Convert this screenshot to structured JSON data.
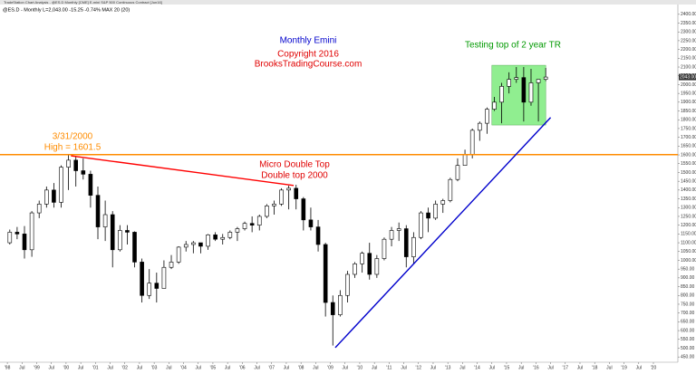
{
  "chart_data": {
    "type": "candlestick",
    "window_title": "TradeStation Chart Analysis - @ES.D Monthly [CME] E-mini S&P 500 Continuous Contract [Jun16]",
    "status_line": "@ES.D - Monthly  L=2,043.00  -15.25  -0.74%  MAX 20 (20)",
    "last_price_label": "2043.00",
    "annotations": {
      "title": "Monthly Emini",
      "copyright": "Copyright 2016",
      "site": "BrooksTradingCourse.com",
      "range_note": "Testing top of 2 year TR",
      "high_date": "3/31/2000",
      "high_note": "High = 1601.5",
      "double_top_1": "Micro Double Top",
      "double_top_2": "Double top 2000"
    },
    "x": [
      "1998-02",
      "1998-05",
      "1998-08",
      "1998-11",
      "1999-02",
      "1999-05",
      "1999-08",
      "1999-11",
      "2000-02",
      "2000-05",
      "2000-08",
      "2000-11",
      "2001-02",
      "2001-05",
      "2001-08",
      "2001-11",
      "2002-02",
      "2002-05",
      "2002-08",
      "2002-11",
      "2003-02",
      "2003-05",
      "2003-08",
      "2003-11",
      "2004-02",
      "2004-05",
      "2004-08",
      "2004-11",
      "2005-02",
      "2005-05",
      "2005-08",
      "2005-11",
      "2006-02",
      "2006-05",
      "2006-08",
      "2006-11",
      "2007-02",
      "2007-05",
      "2007-08",
      "2007-11",
      "2008-02",
      "2008-05",
      "2008-08",
      "2008-11",
      "2009-02",
      "2009-05",
      "2009-08",
      "2009-11",
      "2010-02",
      "2010-05",
      "2010-08",
      "2010-11",
      "2011-02",
      "2011-05",
      "2011-08",
      "2011-11",
      "2012-02",
      "2012-05",
      "2012-08",
      "2012-11",
      "2013-02",
      "2013-05",
      "2013-08",
      "2013-11",
      "2014-02",
      "2014-05",
      "2014-08",
      "2014-11",
      "2015-02",
      "2015-05",
      "2015-08",
      "2015-11",
      "2016-02",
      "2016-05"
    ],
    "open": [
      1100,
      1160,
      1150,
      1060,
      1270,
      1320,
      1400,
      1330,
      1530,
      1570,
      1510,
      1490,
      1370,
      1190,
      1260,
      1060,
      1170,
      1160,
      990,
      800,
      870,
      840,
      960,
      990,
      1075,
      1090,
      1100,
      1080,
      1145,
      1120,
      1130,
      1160,
      1180,
      1210,
      1200,
      1250,
      1310,
      1320,
      1400,
      1410,
      1350,
      1230,
      1190,
      1090,
      760,
      690,
      800,
      920,
      980,
      1040,
      920,
      1010,
      1120,
      1170,
      1180,
      1020,
      1130,
      1270,
      1240,
      1320,
      1340,
      1460,
      1540,
      1600,
      1740,
      1780,
      1860,
      1900,
      1990,
      2030,
      2040,
      1900,
      2010,
      2030
    ],
    "high": [
      1175,
      1190,
      1195,
      1280,
      1340,
      1420,
      1440,
      1540,
      1601.5,
      1590,
      1580,
      1510,
      1420,
      1340,
      1280,
      1200,
      1200,
      1165,
      1010,
      950,
      930,
      1000,
      1030,
      1080,
      1110,
      1110,
      1100,
      1150,
      1160,
      1150,
      1170,
      1190,
      1220,
      1250,
      1260,
      1320,
      1340,
      1410,
      1425,
      1430,
      1360,
      1300,
      1230,
      1100,
      800,
      830,
      940,
      990,
      1050,
      1100,
      1030,
      1130,
      1190,
      1215,
      1200,
      1160,
      1280,
      1300,
      1340,
      1350,
      1470,
      1580,
      1630,
      1750,
      1790,
      1870,
      1930,
      2010,
      2070,
      2100,
      2100,
      2090,
      2030,
      2095
    ],
    "low": [
      1090,
      1120,
      1010,
      1020,
      1240,
      1300,
      1300,
      1300,
      1400,
      1420,
      1460,
      1300,
      1120,
      1110,
      960,
      1050,
      1090,
      960,
      760,
      780,
      760,
      840,
      950,
      980,
      1050,
      1040,
      1040,
      1060,
      1110,
      1090,
      1120,
      1110,
      1170,
      1160,
      1170,
      1240,
      1260,
      1310,
      1290,
      1290,
      1170,
      1170,
      1050,
      680,
      515,
      680,
      760,
      900,
      930,
      890,
      900,
      1000,
      1080,
      1110,
      960,
      980,
      1120,
      1160,
      1230,
      1270,
      1330,
      1450,
      1540,
      1580,
      1680,
      1720,
      1850,
      1780,
      1950,
      2010,
      1790,
      1880,
      1790,
      2020
    ],
    "close": [
      1160,
      1150,
      1060,
      1270,
      1320,
      1400,
      1330,
      1530,
      1570,
      1510,
      1490,
      1370,
      1190,
      1260,
      1060,
      1170,
      1160,
      990,
      800,
      870,
      840,
      960,
      990,
      1075,
      1090,
      1100,
      1080,
      1145,
      1120,
      1130,
      1160,
      1180,
      1210,
      1200,
      1250,
      1310,
      1320,
      1400,
      1410,
      1350,
      1230,
      1190,
      1090,
      760,
      690,
      800,
      920,
      980,
      1040,
      920,
      1010,
      1120,
      1170,
      1180,
      1020,
      1130,
      1270,
      1240,
      1320,
      1340,
      1460,
      1540,
      1600,
      1740,
      1780,
      1860,
      1900,
      1990,
      2030,
      2040,
      1900,
      2010,
      2030,
      2043
    ],
    "lines": [
      {
        "color": "#ff8c00",
        "x": [
          "1997-10",
          "2020-11"
        ],
        "y": [
          1601.5,
          1601.5
        ]
      },
      {
        "color": "#ff0000",
        "x": [
          "2000-03",
          "2007-10"
        ],
        "y": [
          1595,
          1426
        ]
      },
      {
        "color": "#0000cc",
        "x": [
          "2009-03",
          "2016-07"
        ],
        "y": [
          503,
          1813
        ]
      }
    ],
    "range_box": {
      "color": "#90ee90",
      "x": [
        "2014-07",
        "2016-05"
      ],
      "y": [
        1770,
        2110
      ]
    },
    "xlim": [
      "1997-10",
      "2020-11"
    ],
    "ylim": [
      420,
      2430
    ],
    "xticks": [
      {
        "value": "1998-01",
        "label": "'98"
      },
      {
        "value": "1998-07",
        "label": "Jul"
      },
      {
        "value": "1999-01",
        "label": "'99"
      },
      {
        "value": "1999-07",
        "label": "Jul"
      },
      {
        "value": "2000-01",
        "label": "'00"
      },
      {
        "value": "2000-07",
        "label": "Jul"
      },
      {
        "value": "2001-01",
        "label": "'01"
      },
      {
        "value": "2001-07",
        "label": "Jul"
      },
      {
        "value": "2002-01",
        "label": "'02"
      },
      {
        "value": "2002-07",
        "label": "Jul"
      },
      {
        "value": "2003-01",
        "label": "'03"
      },
      {
        "value": "2003-07",
        "label": "Jul"
      },
      {
        "value": "2004-01",
        "label": "'04"
      },
      {
        "value": "2004-07",
        "label": "Jul"
      },
      {
        "value": "2005-01",
        "label": "'05"
      },
      {
        "value": "2005-07",
        "label": "Jul"
      },
      {
        "value": "2006-01",
        "label": "'06"
      },
      {
        "value": "2006-07",
        "label": "Jul"
      },
      {
        "value": "2007-01",
        "label": "'07"
      },
      {
        "value": "2007-07",
        "label": "Jul"
      },
      {
        "value": "2008-01",
        "label": "'08"
      },
      {
        "value": "2008-07",
        "label": "Jul"
      },
      {
        "value": "2009-01",
        "label": "'09"
      },
      {
        "value": "2009-07",
        "label": "Jul"
      },
      {
        "value": "2010-01",
        "label": "'10"
      },
      {
        "value": "2010-07",
        "label": "Jul"
      },
      {
        "value": "2011-01",
        "label": "'11"
      },
      {
        "value": "2011-07",
        "label": "Jul"
      },
      {
        "value": "2012-01",
        "label": "'12"
      },
      {
        "value": "2012-07",
        "label": "Jul"
      },
      {
        "value": "2013-01",
        "label": "'13"
      },
      {
        "value": "2013-07",
        "label": "Jul"
      },
      {
        "value": "2014-01",
        "label": "'14"
      },
      {
        "value": "2014-07",
        "label": "Jul"
      },
      {
        "value": "2015-01",
        "label": "'15"
      },
      {
        "value": "2015-07",
        "label": "Jul"
      },
      {
        "value": "2016-01",
        "label": "'16"
      },
      {
        "value": "2016-07",
        "label": "Jul"
      },
      {
        "value": "2017-01",
        "label": "'17"
      },
      {
        "value": "2017-07",
        "label": "Jul"
      },
      {
        "value": "2018-01",
        "label": "'18"
      },
      {
        "value": "2018-07",
        "label": "Jul"
      },
      {
        "value": "2019-01",
        "label": "'19"
      },
      {
        "value": "2019-07",
        "label": "Jul"
      },
      {
        "value": "2020-01",
        "label": "'20"
      }
    ],
    "yticks": [
      {
        "value": 2400,
        "label": "2400.00"
      },
      {
        "value": 2350,
        "label": "2350.00"
      },
      {
        "value": 2300,
        "label": "2300.00"
      },
      {
        "value": 2250,
        "label": "2250.00"
      },
      {
        "value": 2200,
        "label": "2200.00"
      },
      {
        "value": 2150,
        "label": "2150.00"
      },
      {
        "value": 2100,
        "label": "2100.00"
      },
      {
        "value": 2050,
        "label": "2050.00"
      },
      {
        "value": 2000,
        "label": "2000.00"
      },
      {
        "value": 1950,
        "label": "1950.00"
      },
      {
        "value": 1900,
        "label": "1900.00"
      },
      {
        "value": 1850,
        "label": "1850.00"
      },
      {
        "value": 1800,
        "label": "1800.00"
      },
      {
        "value": 1750,
        "label": "1750.00"
      },
      {
        "value": 1700,
        "label": "1700.00"
      },
      {
        "value": 1650,
        "label": "1650.00"
      },
      {
        "value": 1600,
        "label": "1600.00"
      },
      {
        "value": 1550,
        "label": "1550.00"
      },
      {
        "value": 1500,
        "label": "1500.00"
      },
      {
        "value": 1450,
        "label": "1450.00"
      },
      {
        "value": 1400,
        "label": "1400.00"
      },
      {
        "value": 1350,
        "label": "1350.00"
      },
      {
        "value": 1300,
        "label": "1300.00"
      },
      {
        "value": 1250,
        "label": "1250.00"
      },
      {
        "value": 1200,
        "label": "1200.00"
      },
      {
        "value": 1150,
        "label": "1150.00"
      },
      {
        "value": 1100,
        "label": "1100.00"
      },
      {
        "value": 1050,
        "label": "1050.00"
      },
      {
        "value": 1000,
        "label": "1000.00"
      },
      {
        "value": 950,
        "label": "950.00"
      },
      {
        "value": 900,
        "label": "900.00"
      },
      {
        "value": 850,
        "label": "850.00"
      },
      {
        "value": 800,
        "label": "800.00"
      },
      {
        "value": 750,
        "label": "750.00"
      },
      {
        "value": 700,
        "label": "700.00"
      },
      {
        "value": 650,
        "label": "650.00"
      },
      {
        "value": 600,
        "label": "600.00"
      },
      {
        "value": 550,
        "label": "550.00"
      },
      {
        "value": 500,
        "label": "500.00"
      },
      {
        "value": 450,
        "label": "450.00"
      }
    ]
  }
}
